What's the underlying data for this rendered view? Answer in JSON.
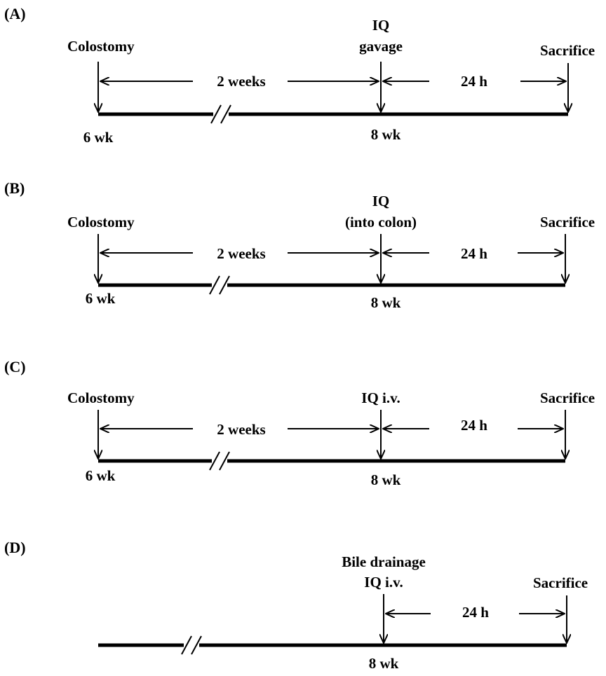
{
  "panels": [
    {
      "label": "(A)",
      "start_label": "Colostomy",
      "start_age": "6 wk",
      "interval_1": "2 weeks",
      "mid_label_lines": [
        "IQ",
        "gavage"
      ],
      "mid_age": "8 wk",
      "interval_2": "24 h",
      "end_label": "Sacrifice"
    },
    {
      "label": "(B)",
      "start_label": "Colostomy",
      "start_age": "6 wk",
      "interval_1": "2 weeks",
      "mid_label_lines": [
        "IQ",
        "(into colon)"
      ],
      "mid_age": "8 wk",
      "interval_2": "24 h",
      "end_label": "Sacrifice"
    },
    {
      "label": "(C)",
      "start_label": "Colostomy",
      "start_age": "6 wk",
      "interval_1": "2 weeks",
      "mid_label_lines": [
        "IQ i.v."
      ],
      "mid_age": "8 wk",
      "interval_2": "24 h",
      "end_label": "Sacrifice"
    },
    {
      "label": "(D)",
      "start_label": "",
      "start_age": "",
      "interval_1": "",
      "mid_label_lines": [
        "Bile drainage",
        "IQ i.v."
      ],
      "mid_age": "8 wk",
      "interval_2": "24 h",
      "end_label": "Sacrifice"
    }
  ]
}
